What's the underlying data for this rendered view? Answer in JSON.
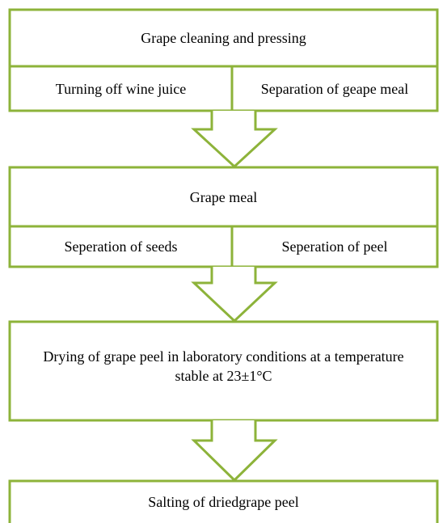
{
  "steps": [
    {
      "title": "Grape cleaning and pressing",
      "items": [
        "Turning off wine juice",
        "Separation of geape meal"
      ]
    },
    {
      "title": "Grape meal",
      "items": [
        "Seperation of seeds",
        "Seperation of peel"
      ]
    },
    {
      "title": "Drying of grape peel in laboratory conditions at a temperature stable at 23±1°C"
    },
    {
      "title": "Salting of driedgrape peel"
    }
  ]
}
